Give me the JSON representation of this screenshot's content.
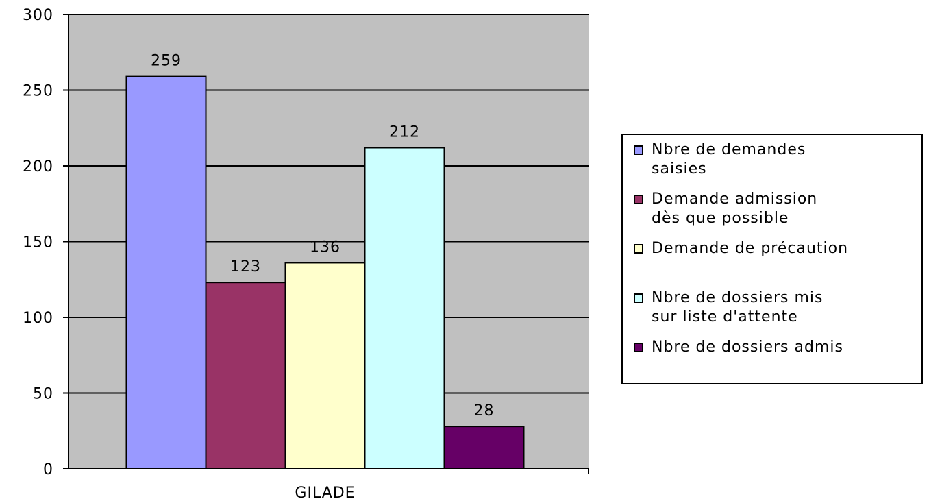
{
  "chart_data": {
    "type": "bar",
    "categories": [
      "GILADE"
    ],
    "series": [
      {
        "name": "Nbre de demandes saisies",
        "values": [
          259
        ],
        "color": "#9999ff"
      },
      {
        "name": "Demande admission dès que possible",
        "values": [
          123
        ],
        "color": "#993366"
      },
      {
        "name": "Demande de précaution",
        "values": [
          136
        ],
        "color": "#ffffcc"
      },
      {
        "name": "Nbre de dossiers mis sur liste d'attente",
        "values": [
          212
        ],
        "color": "#ccffff"
      },
      {
        "name": "Nbre de dossiers admis",
        "values": [
          28
        ],
        "color": "#660066"
      }
    ],
    "title": "",
    "xlabel": "",
    "ylabel": "",
    "ylim": [
      0,
      300
    ],
    "yticks": [
      "0",
      "50",
      "100",
      "150",
      "200",
      "250",
      "300"
    ],
    "grid": true,
    "legend_position": "right",
    "plot_background": "#c0c0c0"
  },
  "legend": {
    "items": [
      {
        "label": "Nbre de demandes\nsaisies",
        "color": "#9999ff"
      },
      {
        "label": "Demande admission\ndès que possible",
        "color": "#993366"
      },
      {
        "label": "Demande de précaution",
        "color": "#ffffcc"
      },
      {
        "label": "Nbre de dossiers mis\nsur liste d'attente",
        "color": "#ccffff"
      },
      {
        "label": "Nbre de dossiers admis",
        "color": "#660066"
      }
    ]
  }
}
